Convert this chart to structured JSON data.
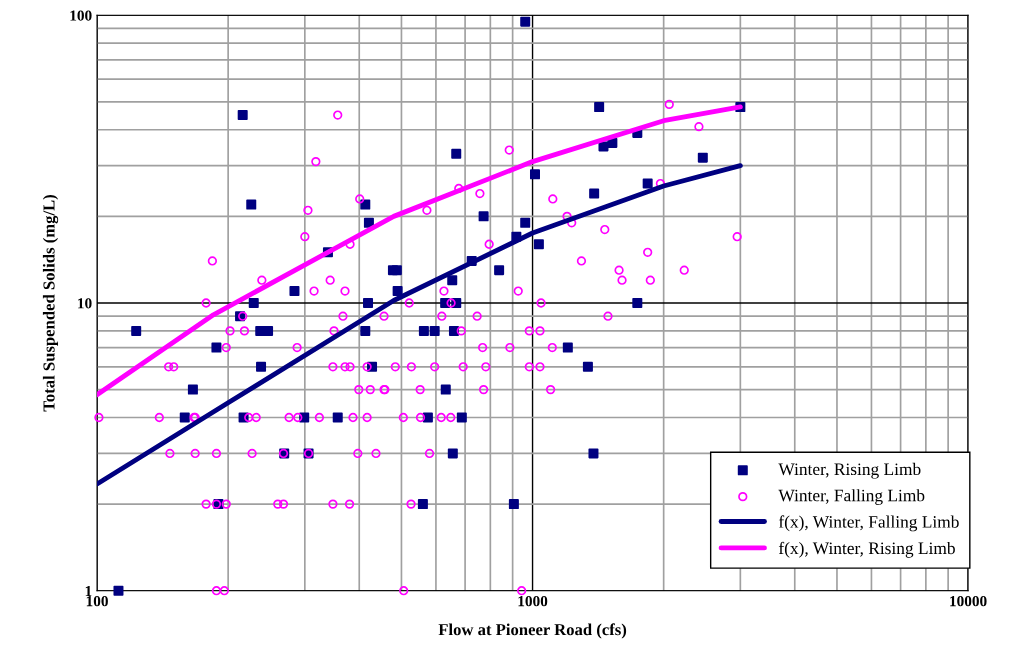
{
  "chart_data": {
    "type": "scatter",
    "xlabel": "Flow at Pioneer Road (cfs)",
    "ylabel": "Total Suspended Solids (mg/L)",
    "log": "xy",
    "xlim": [
      100,
      10000
    ],
    "ylim": [
      1,
      100
    ],
    "xticks": [
      100,
      1000,
      10000
    ],
    "yticks": [
      1,
      10,
      100
    ],
    "grid": true,
    "legend": "bottom right",
    "series": [
      {
        "name": "Winter, Rising Limb",
        "marker": "square",
        "color": "#000080",
        "x": [
          112,
          123,
          159,
          166,
          188,
          190,
          213,
          216,
          217,
          226,
          229,
          237,
          247,
          238,
          269,
          284,
          299,
          306,
          339,
          357,
          419,
          413,
          413,
          421,
          428,
          478,
          488,
          490,
          563,
          596,
          560,
          575,
          630,
          632,
          654,
          656,
          660,
          668,
          668,
          688,
          725,
          772,
          838,
          906,
          918,
          962,
          962,
          1013,
          1034,
          1205,
          1340,
          1380,
          1385,
          1422,
          1455,
          1525,
          1740,
          1740,
          1838,
          2460,
          3000
        ],
        "values": [
          1,
          8,
          4,
          5,
          7,
          2,
          9,
          45,
          4,
          22,
          10,
          8,
          8,
          6,
          3,
          11,
          4,
          3,
          15,
          4,
          10,
          8,
          22,
          19,
          6,
          13,
          13,
          11,
          8,
          8,
          2,
          4,
          10,
          5,
          12,
          3,
          8,
          10,
          33,
          4,
          14,
          20,
          13,
          2,
          17,
          95,
          19,
          28,
          16,
          7,
          6,
          3,
          24,
          48,
          35,
          36,
          39,
          10,
          26,
          32,
          48
        ]
      },
      {
        "name": "Winter, Falling Limb",
        "marker": "circle",
        "color": "#ff00ff",
        "x": [
          357,
          318,
          401,
          305,
          300,
          381,
          184,
          239,
          343,
          315,
          371,
          178,
          884,
          2060,
          677,
          757,
          1113,
          1966,
          572,
          1200,
          1230,
          1465,
          795,
          1295,
          1838,
          1580,
          1605,
          1864,
          626,
          927,
          521,
          650,
          1046,
          2410,
          2950,
          2230,
          216,
          367,
          456,
          202,
          218,
          350,
          198,
          288,
          146,
          150,
          348,
          371,
          381,
          417,
          484,
          399,
          424,
          456,
          101,
          139,
          167,
          168,
          223,
          232,
          276,
          289,
          324,
          387,
          417,
          147,
          168,
          188,
          227,
          268,
          306,
          397,
          437,
          178,
          188,
          198,
          260,
          268,
          348,
          380,
          188,
          196,
          619,
          746,
          1490,
          686,
          983,
          1040,
          768,
          887,
          1110,
          527,
          596,
          693,
          781,
          983,
          1040,
          458,
          552,
          772,
          1100,
          505,
          553,
          617,
          649,
          580,
          526,
          506,
          944
        ],
        "values": [
          45,
          31,
          23,
          21,
          17,
          16,
          14,
          12,
          12,
          11,
          11,
          10,
          34,
          49,
          25,
          24,
          23,
          26,
          21,
          20,
          19,
          18,
          16,
          14,
          15,
          13,
          12,
          12,
          11,
          11,
          10,
          10,
          10,
          41,
          17,
          13,
          9,
          9,
          9,
          8,
          8,
          8,
          7,
          7,
          6,
          6,
          6,
          6,
          6,
          6,
          6,
          5,
          5,
          5,
          4,
          4,
          4,
          4,
          4,
          4,
          4,
          4,
          4,
          4,
          4,
          3,
          3,
          3,
          3,
          3,
          3,
          3,
          3,
          2,
          2,
          2,
          2,
          2,
          2,
          2,
          1,
          1,
          9,
          9,
          9,
          8,
          8,
          8,
          7,
          7,
          7,
          6,
          6,
          6,
          6,
          6,
          6,
          5,
          5,
          5,
          5,
          4,
          4,
          4,
          4,
          3,
          2,
          1,
          1
        ]
      },
      {
        "name": "f(x), Winter, Falling Limb",
        "type": "line",
        "color": "#000080",
        "x": [
          100,
          200,
          480,
          1000,
          2000,
          3000
        ],
        "values": [
          2.35,
          4.5,
          10.2,
          17.5,
          25.5,
          30
        ]
      },
      {
        "name": "f(x), Winter, Rising Limb",
        "type": "line",
        "color": "#ff00ff",
        "x": [
          100,
          185,
          480,
          1000,
          2000,
          3000
        ],
        "values": [
          4.8,
          9.1,
          20,
          31,
          43,
          48
        ]
      }
    ]
  }
}
